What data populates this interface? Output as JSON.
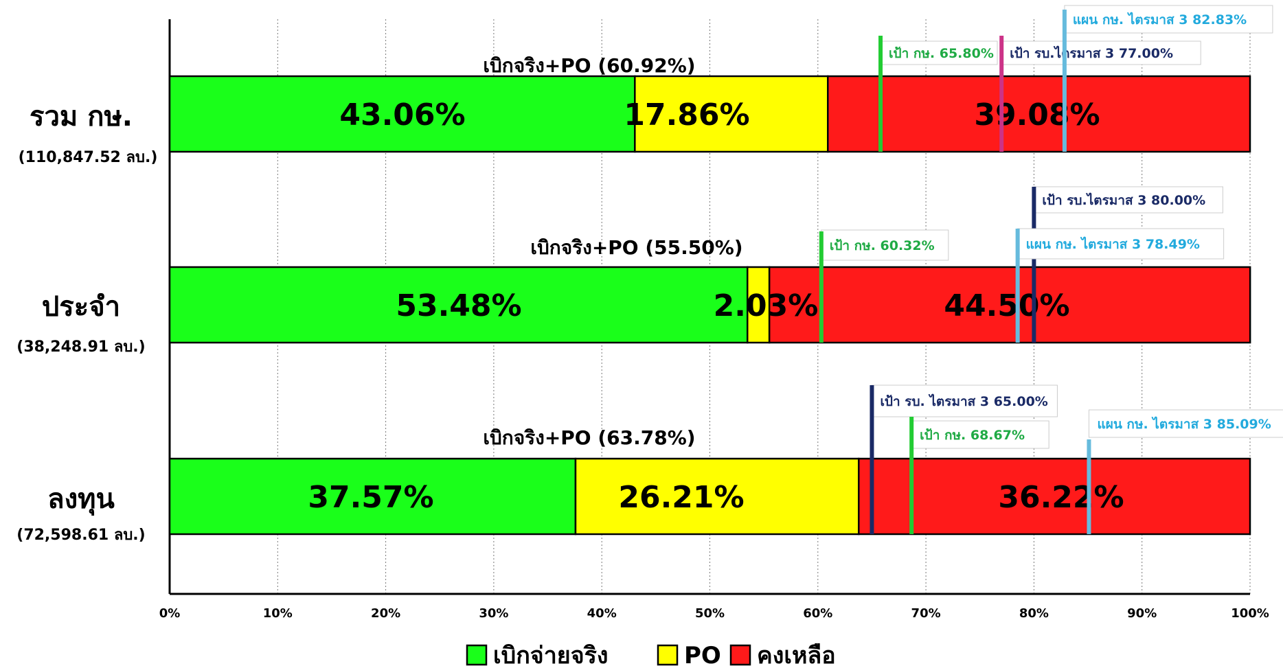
{
  "chart_data": {
    "type": "bar",
    "orientation": "horizontal",
    "stacked": true,
    "title": "",
    "xlabel": "",
    "ylabel": "",
    "xlim": [
      0,
      100
    ],
    "x_ticks": [
      "0%",
      "10%",
      "20%",
      "30%",
      "40%",
      "50%",
      "60%",
      "70%",
      "80%",
      "90%",
      "100%"
    ],
    "grid": "vertical-dotted",
    "legend_position": "bottom",
    "legend": [
      {
        "label": "เบิกจ่ายจริง",
        "color": "#1aff1a"
      },
      {
        "label": "PO",
        "color": "#ffff00"
      },
      {
        "label": "คงเหลือ",
        "color": "#ff1a1a"
      }
    ],
    "categories": [
      {
        "name": "รวม กษ.",
        "budget": "(110,847.52 ลบ.)",
        "values": [
          43.06,
          17.86,
          39.08
        ],
        "labels": [
          "43.06%",
          "17.86%",
          "39.08%"
        ],
        "summary": "เบิกจริง+PO  (60.92%)",
        "summary_value": 60.92,
        "markers": [
          {
            "label": "เป้า กษ. 65.80%",
            "value": 65.8,
            "color": "#22cc33",
            "text_color": "#1faa44"
          },
          {
            "label": "เป้า รบ.ไตรมาส 3 77.00%",
            "value": 77.0,
            "color": "#cc3388",
            "text_color": "#1a2a66"
          },
          {
            "label": "แผน กษ. ไตรมาส 3 82.83%",
            "value": 82.83,
            "color": "#66bbdd",
            "text_color": "#22aadd"
          }
        ]
      },
      {
        "name": "ประจำ",
        "budget": "(38,248.91 ลบ.)",
        "values": [
          53.48,
          2.03,
          44.5
        ],
        "labels": [
          "53.48%",
          "2.03%",
          "44.50%"
        ],
        "summary": "เบิกจริง+PO  (55.50%)",
        "summary_value": 55.5,
        "markers": [
          {
            "label": "เป้า กษ. 60.32%",
            "value": 60.32,
            "color": "#22cc33",
            "text_color": "#1faa44"
          },
          {
            "label": "เป้า รบ.ไตรมาส 3 80.00%",
            "value": 80.0,
            "color": "#1a2a66",
            "text_color": "#1a2a66"
          },
          {
            "label": "แผน กษ. ไตรมาส 3  78.49%",
            "value": 78.49,
            "color": "#66bbdd",
            "text_color": "#22aadd"
          }
        ]
      },
      {
        "name": "ลงทุน",
        "budget": "(72,598.61 ลบ.)",
        "values": [
          37.57,
          26.21,
          36.22
        ],
        "labels": [
          "37.57%",
          "26.21%",
          "36.22%"
        ],
        "summary": "เบิกจริง+PO (63.78%)",
        "summary_value": 63.78,
        "markers": [
          {
            "label": "เป้า รบ. ไตรมาส 3 65.00%",
            "value": 65.0,
            "color": "#1a2a66",
            "text_color": "#1a2a66"
          },
          {
            "label": "เป้า กษ. 68.67%",
            "value": 68.67,
            "color": "#22cc33",
            "text_color": "#1faa44"
          },
          {
            "label": "แผน กษ. ไตรมาส 3  85.09%",
            "value": 85.09,
            "color": "#66bbdd",
            "text_color": "#22aadd"
          }
        ]
      }
    ]
  }
}
